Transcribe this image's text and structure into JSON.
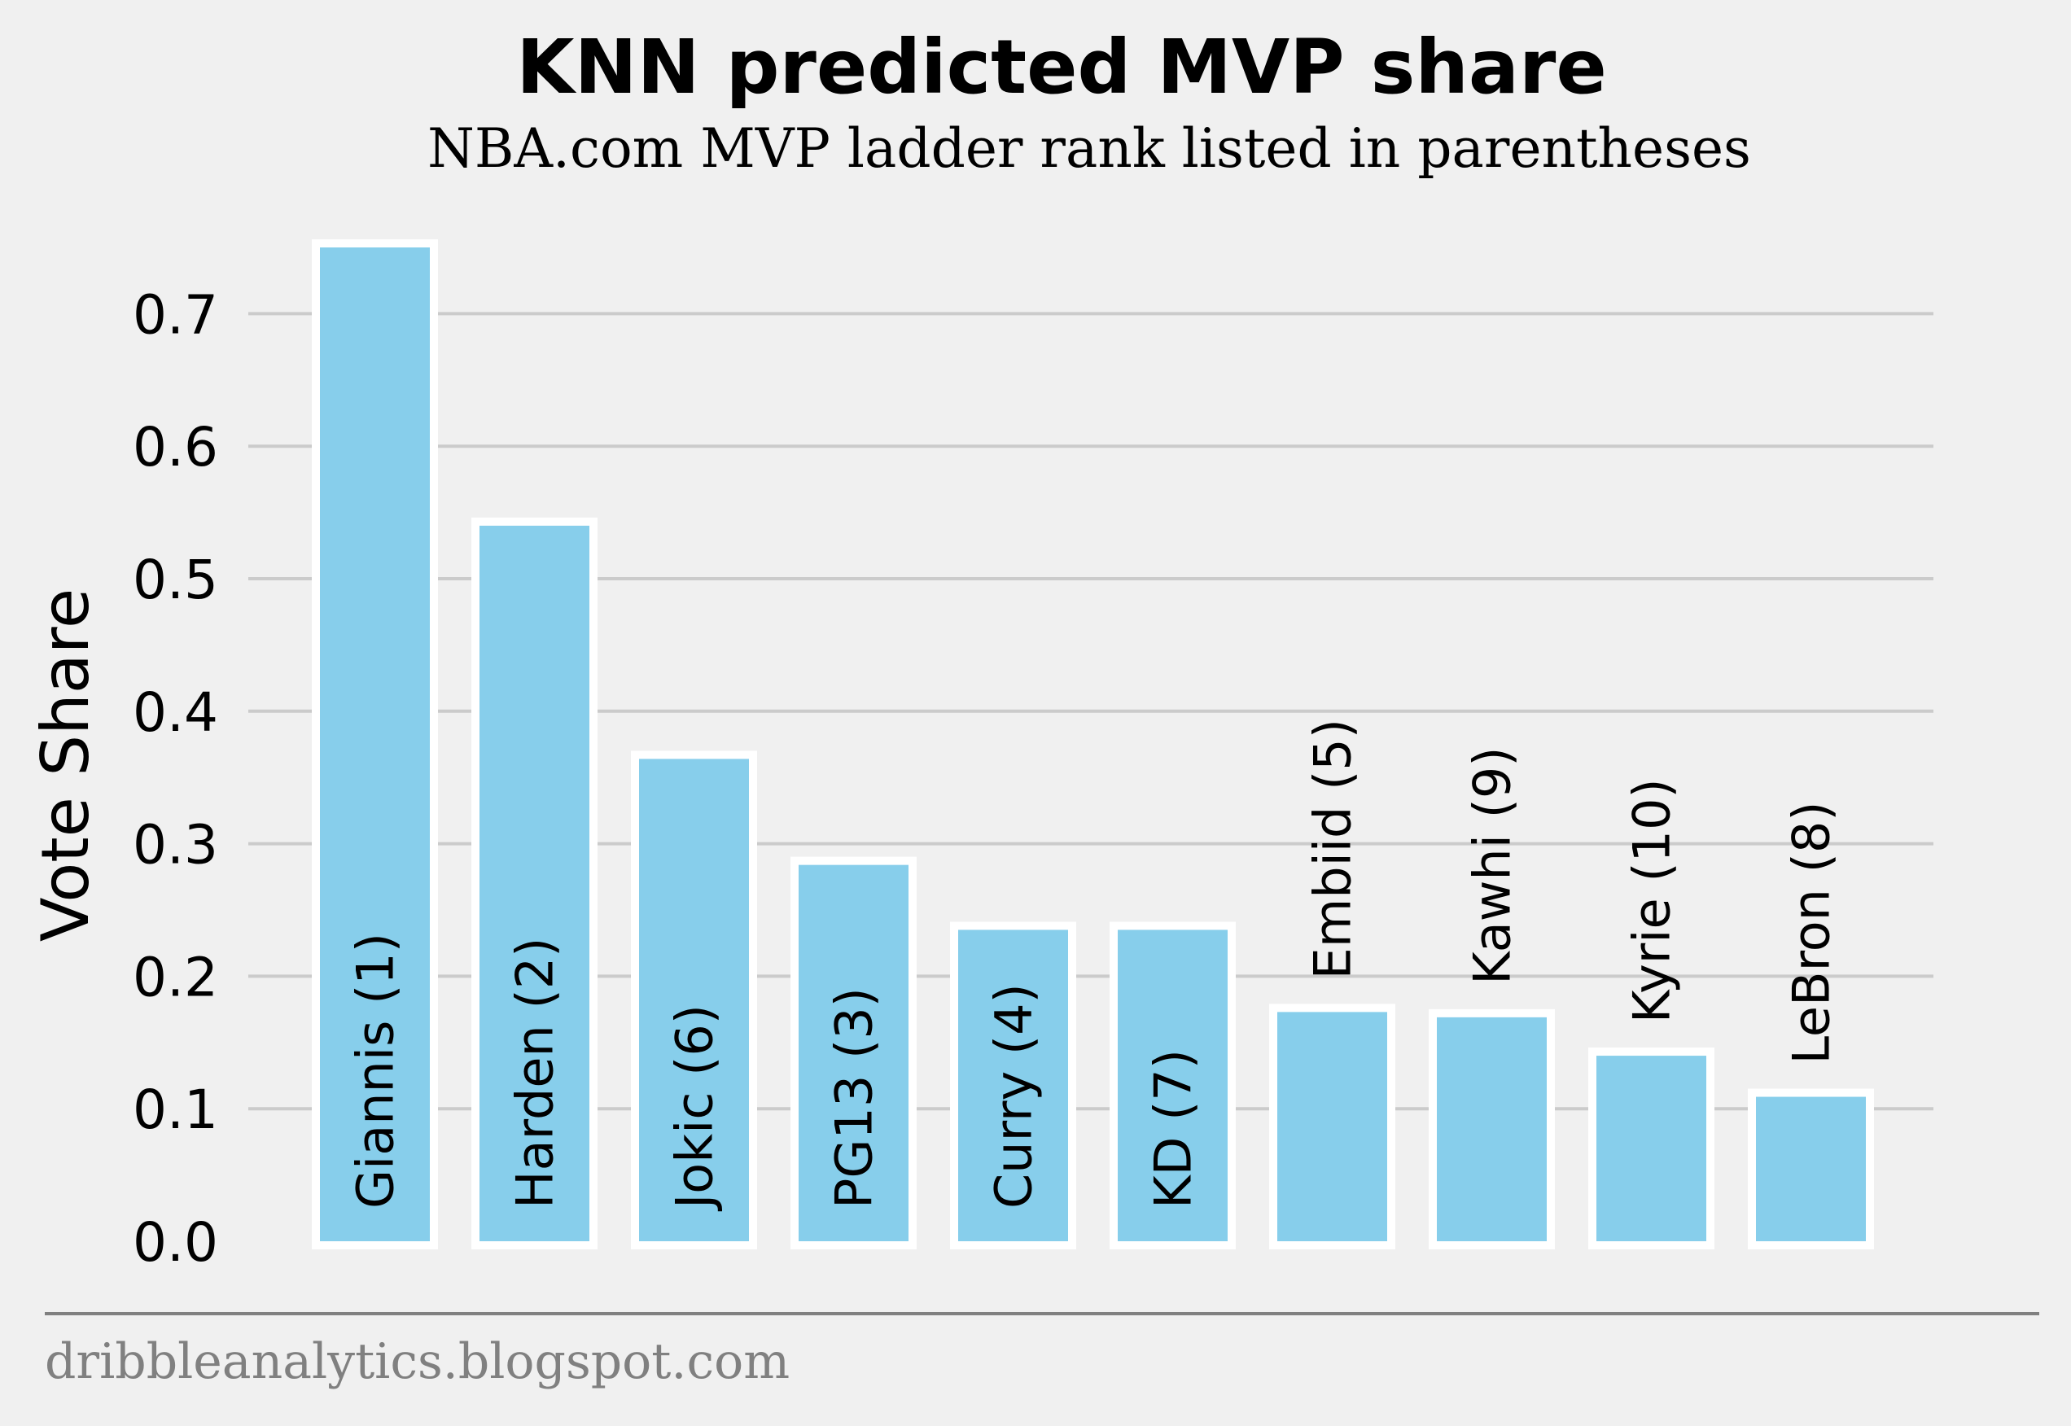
{
  "chart_data": {
    "type": "bar",
    "title": "KNN predicted MVP share",
    "subtitle": "NBA.com MVP ladder rank listed in parentheses",
    "ylabel": "Vote Share",
    "xlabel": "",
    "ylim": [
      0,
      0.75
    ],
    "yticks": [
      "0.0",
      "0.1",
      "0.2",
      "0.3",
      "0.4",
      "0.5",
      "0.6",
      "0.7"
    ],
    "grid": "horizontal",
    "categories": [
      "Giannis (1)",
      "Harden (2)",
      "Jokic (6)",
      "PG13 (3)",
      "Curry (4)",
      "KD (7)",
      "Embiid (5)",
      "Kawhi (9)",
      "Kyrie (10)",
      "LeBron (8)"
    ],
    "values": [
      0.75,
      0.54,
      0.364,
      0.284,
      0.235,
      0.235,
      0.173,
      0.169,
      0.14,
      0.109
    ],
    "label_positions": [
      "inside",
      "inside",
      "inside",
      "inside",
      "inside",
      "inside",
      "above",
      "above",
      "above",
      "above"
    ]
  },
  "colors": {
    "background": "#f0f0f0",
    "bar_fill": "#87ceeb",
    "bar_edge": "#ffffff",
    "grid": "#cbcbcb",
    "footer_text": "#808080",
    "footer_rule": "#808080"
  },
  "footer": {
    "source": "dribbleanalytics.blogspot.com"
  }
}
